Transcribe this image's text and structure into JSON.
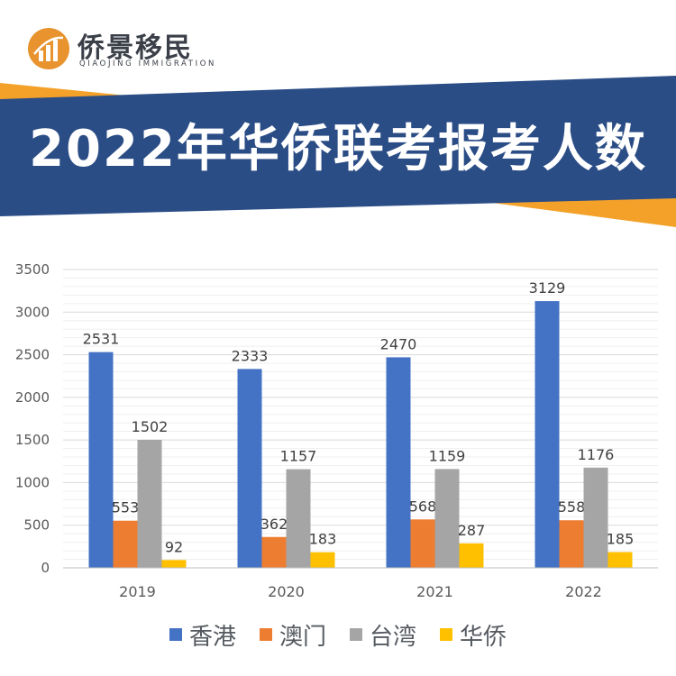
{
  "header": {
    "brand_name": "侨景移民",
    "brand_subtitle": "QIAOJING IMMIGRATION",
    "banner_title": "2022年华侨联考报考人数"
  },
  "colors": {
    "banner_blue": "#2b4d86",
    "accent_orange": "#f4a12a",
    "logo_orange": "#e8932d"
  },
  "chart_data": {
    "type": "bar",
    "categories": [
      "2019",
      "2020",
      "2021",
      "2022"
    ],
    "ylim": [
      0,
      3500
    ],
    "yticks": [
      "0",
      "500",
      "1000",
      "1500",
      "2000",
      "2500",
      "3000",
      "3500"
    ],
    "grid": true,
    "legend_position": "bottom",
    "series": [
      {
        "name": "香港",
        "color": "#4472c4",
        "values": [
          2531,
          2333,
          2470,
          3129
        ]
      },
      {
        "name": "澳门",
        "color": "#ed7d31",
        "values": [
          553,
          362,
          568,
          558
        ]
      },
      {
        "name": "台湾",
        "color": "#a5a5a5",
        "values": [
          1502,
          1157,
          1159,
          1176
        ]
      },
      {
        "name": "华侨",
        "color": "#ffc000",
        "values": [
          92,
          183,
          287,
          185
        ]
      }
    ]
  }
}
